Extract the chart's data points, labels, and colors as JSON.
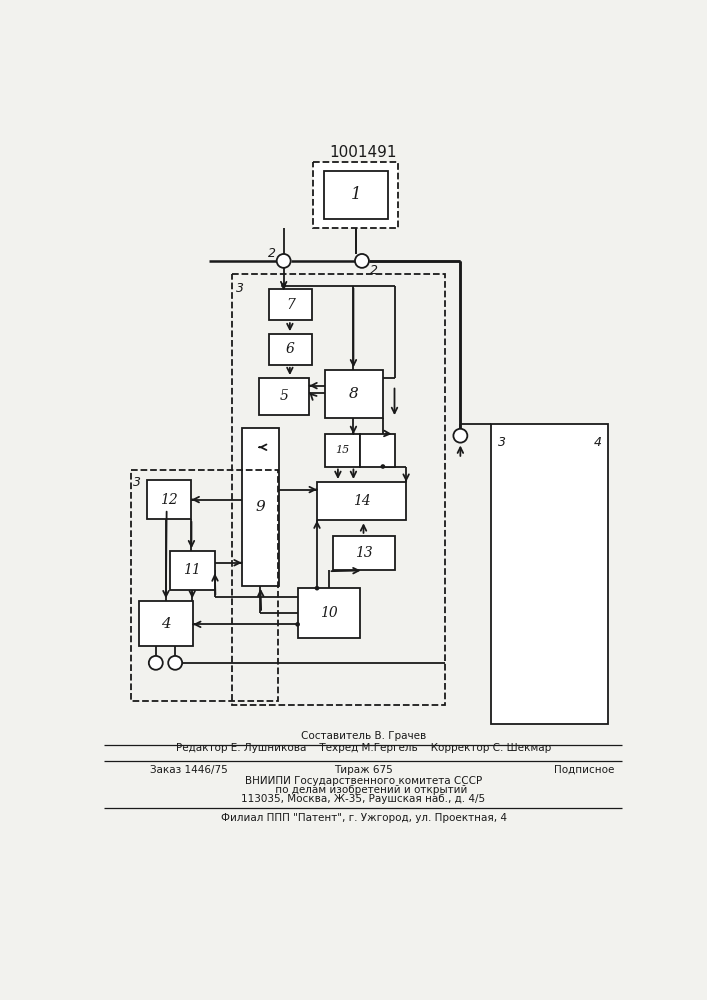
{
  "bg": "#f2f2ee",
  "lc": "#1a1a1a",
  "title": "1001491",
  "f1": "Составитель В. Грачев",
  "f2": "Редактор Е. Лушникова    Техред М.Гергель    Корректор С. Шекмар",
  "f3a": "Заказ 1446/75",
  "f3b": "Тираж 675",
  "f3c": "Подписное",
  "f4": "ВНИИПИ Государственного комитета СССР",
  "f5": "     по делам изобретений и открытий",
  "f6": "113035, Москва, Ж-35, Раушская наб., д. 4/5",
  "f7": "Филиал ППП \"Патент\", г. Ужгород, ул. Проектная, 4"
}
